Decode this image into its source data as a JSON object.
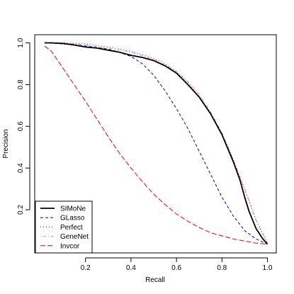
{
  "chart_data": {
    "type": "line",
    "title": "",
    "xlabel": "Recall",
    "ylabel": "Precision",
    "xlim": [
      0.0,
      1.0
    ],
    "ylim": [
      0.0,
      1.0
    ],
    "xticks": [
      0.2,
      0.4,
      0.6,
      0.8,
      1.0
    ],
    "xtick_labels": [
      "0.2",
      "0.4",
      "0.6",
      "0.8",
      "1.0"
    ],
    "yticks": [
      0.2,
      0.4,
      0.6,
      0.8,
      1.0
    ],
    "ytick_labels": [
      "0.2",
      "0.4",
      "0.6",
      "0.8",
      "1.0"
    ],
    "grid": false,
    "legend_position": "bottom-left",
    "series": [
      {
        "name": "SIMoNe",
        "color": "#000000",
        "dash": "solid",
        "x": [
          0.02,
          0.05,
          0.1,
          0.15,
          0.2,
          0.25,
          0.3,
          0.35,
          0.4,
          0.45,
          0.5,
          0.55,
          0.6,
          0.65,
          0.7,
          0.75,
          0.8,
          0.85,
          0.88,
          0.9,
          0.92,
          0.95,
          0.98,
          1.0
        ],
        "y": [
          1.0,
          1.0,
          0.997,
          0.99,
          0.98,
          0.975,
          0.965,
          0.955,
          0.94,
          0.93,
          0.915,
          0.89,
          0.855,
          0.8,
          0.74,
          0.66,
          0.56,
          0.43,
          0.34,
          0.26,
          0.19,
          0.11,
          0.06,
          0.035
        ]
      },
      {
        "name": "GLasso",
        "color": "#0000cc",
        "dash": "dashed",
        "x": [
          0.02,
          0.1,
          0.2,
          0.3,
          0.35,
          0.4,
          0.45,
          0.5,
          0.55,
          0.6,
          0.65,
          0.7,
          0.75,
          0.8,
          0.85,
          0.9,
          0.95,
          1.0
        ],
        "y": [
          1.0,
          0.995,
          0.985,
          0.97,
          0.955,
          0.935,
          0.9,
          0.845,
          0.77,
          0.685,
          0.59,
          0.48,
          0.37,
          0.26,
          0.17,
          0.1,
          0.06,
          0.035
        ]
      },
      {
        "name": "Perfect",
        "color": "#ff0000",
        "dash": "dotted",
        "x": [
          0.02,
          0.1,
          0.2,
          0.3,
          0.4,
          0.5,
          0.55,
          0.6,
          0.65,
          0.7,
          0.75,
          0.8,
          0.85,
          0.9,
          0.95,
          1.0
        ],
        "y": [
          1.0,
          1.0,
          0.995,
          0.98,
          0.96,
          0.925,
          0.9,
          0.86,
          0.81,
          0.745,
          0.665,
          0.565,
          0.44,
          0.3,
          0.15,
          0.04
        ]
      },
      {
        "name": "GeneNet",
        "color": "#aaaaaa",
        "dash": "dotdash",
        "x": [
          0.02,
          0.1,
          0.2,
          0.3,
          0.4,
          0.5,
          0.6,
          0.65,
          0.7,
          0.75,
          0.8,
          0.85,
          0.9,
          0.95,
          1.0
        ],
        "y": [
          1.0,
          1.0,
          0.99,
          0.975,
          0.955,
          0.92,
          0.865,
          0.815,
          0.755,
          0.67,
          0.57,
          0.44,
          0.3,
          0.15,
          0.04
        ]
      },
      {
        "name": "Invcor",
        "color": "#ee0000",
        "dash": "longdash",
        "x": [
          0.02,
          0.05,
          0.1,
          0.15,
          0.2,
          0.25,
          0.3,
          0.35,
          0.4,
          0.45,
          0.5,
          0.55,
          0.6,
          0.65,
          0.7,
          0.75,
          0.8,
          0.85,
          0.9,
          0.95,
          1.0
        ],
        "y": [
          0.985,
          0.96,
          0.88,
          0.8,
          0.72,
          0.635,
          0.55,
          0.47,
          0.4,
          0.335,
          0.275,
          0.225,
          0.18,
          0.145,
          0.115,
          0.09,
          0.075,
          0.06,
          0.05,
          0.04,
          0.035
        ]
      }
    ]
  }
}
